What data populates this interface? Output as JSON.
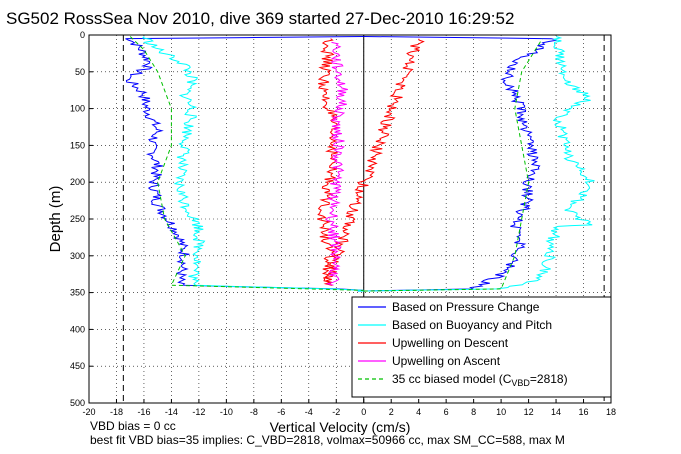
{
  "chart_data": {
    "type": "line",
    "title": "SG502 RossSea Nov 2010, dive 369 started 27-Dec-2010 16:29:52",
    "xlabel": "Vertical Velocity (cm/s)",
    "ylabel": "Depth (m)",
    "xlim": [
      -20,
      18
    ],
    "ylim": [
      0,
      500
    ],
    "y_reversed": true,
    "grid": true,
    "x_ticks": [
      -20,
      -18,
      -16,
      -14,
      -12,
      -10,
      -8,
      -6,
      -4,
      -2,
      0,
      2,
      4,
      6,
      8,
      10,
      12,
      14,
      16,
      18
    ],
    "y_ticks": [
      0,
      50,
      100,
      150,
      200,
      250,
      300,
      350,
      400,
      450,
      500
    ],
    "legend_position": "bottom-right",
    "legend": [
      {
        "label": "Based on Pressure Change",
        "color": "#0000ff",
        "style": "solid"
      },
      {
        "label": "Based on Buoyancy and Pitch",
        "color": "#00ffff",
        "style": "solid"
      },
      {
        "label": "Upwelling on Descent",
        "color": "#ff0000",
        "style": "solid"
      },
      {
        "label": "Upwelling on Ascent",
        "color": "#ff00ff",
        "style": "solid"
      },
      {
        "label": "35 cc biased model (C",
        "sub": "VBD",
        "suffix": "=2818)",
        "color": "#00c000",
        "style": "dashed"
      }
    ],
    "reference_lines_x": [
      -17.5,
      17.5
    ],
    "series": [
      {
        "key": "pressure_descent",
        "color": "#0000ff",
        "points": [
          [
            0,
            2
          ],
          [
            -17,
            5
          ],
          [
            -16.2,
            20
          ],
          [
            -15.5,
            40
          ],
          [
            -17.2,
            60
          ],
          [
            -16,
            80
          ],
          [
            -15.8,
            100
          ],
          [
            -15,
            130
          ],
          [
            -15.5,
            150
          ],
          [
            -15,
            180
          ],
          [
            -15.3,
            200
          ],
          [
            -15,
            230
          ],
          [
            -13.5,
            270
          ],
          [
            -13,
            300
          ],
          [
            -13.5,
            340
          ],
          [
            -2,
            345
          ],
          [
            0,
            347
          ]
        ]
      },
      {
        "key": "pressure_ascent",
        "color": "#0000ff",
        "points": [
          [
            0,
            348
          ],
          [
            8,
            345
          ],
          [
            10.5,
            320
          ],
          [
            11.5,
            290
          ],
          [
            11,
            260
          ],
          [
            11.8,
            230
          ],
          [
            12,
            200
          ],
          [
            12.5,
            170
          ],
          [
            12,
            140
          ],
          [
            11.5,
            110
          ],
          [
            11,
            80
          ],
          [
            10.5,
            60
          ],
          [
            11,
            40
          ],
          [
            12.5,
            20
          ],
          [
            14,
            5
          ],
          [
            0,
            2
          ]
        ]
      },
      {
        "key": "buoyancy_descent",
        "color": "#00ffff",
        "points": [
          [
            -16,
            2
          ],
          [
            -15,
            20
          ],
          [
            -13,
            40
          ],
          [
            -12.5,
            60
          ],
          [
            -13,
            80
          ],
          [
            -12.5,
            100
          ],
          [
            -13,
            150
          ],
          [
            -13.5,
            200
          ],
          [
            -13,
            230
          ],
          [
            -12,
            260
          ],
          [
            -12,
            300
          ],
          [
            -12.5,
            340
          ],
          [
            -2,
            345
          ],
          [
            0,
            347
          ]
        ]
      },
      {
        "key": "buoyancy_ascent",
        "color": "#00ffff",
        "points": [
          [
            0,
            348
          ],
          [
            10,
            345
          ],
          [
            13,
            330
          ],
          [
            13.5,
            300
          ],
          [
            14,
            260
          ],
          [
            16.5,
            258
          ],
          [
            15,
            240
          ],
          [
            16.5,
            200
          ],
          [
            15,
            170
          ],
          [
            14.5,
            140
          ],
          [
            14.2,
            110
          ],
          [
            16.5,
            85
          ],
          [
            14.5,
            60
          ],
          [
            14.5,
            40
          ],
          [
            14,
            10
          ],
          [
            14,
            2
          ]
        ]
      },
      {
        "key": "model_descent",
        "color": "#00c000",
        "dashed": true,
        "points": [
          [
            -17,
            2
          ],
          [
            -16,
            20
          ],
          [
            -15,
            50
          ],
          [
            -14,
            100
          ],
          [
            -14,
            150
          ],
          [
            -15,
            200
          ],
          [
            -14.5,
            250
          ],
          [
            -13,
            300
          ],
          [
            -14,
            340
          ],
          [
            0,
            347
          ]
        ]
      },
      {
        "key": "model_ascent",
        "color": "#00c000",
        "dashed": true,
        "points": [
          [
            0,
            348
          ],
          [
            10,
            345
          ],
          [
            11,
            300
          ],
          [
            12,
            200
          ],
          [
            11.5,
            150
          ],
          [
            11,
            100
          ],
          [
            11.5,
            50
          ],
          [
            13,
            5
          ]
        ]
      },
      {
        "key": "upwelling_descent",
        "color": "#ff0000",
        "points": [
          [
            -2.5,
            5
          ],
          [
            -2.8,
            50
          ],
          [
            -3,
            80
          ],
          [
            -2.5,
            100
          ],
          [
            -2.2,
            150
          ],
          [
            -2.5,
            200
          ],
          [
            -3,
            250
          ],
          [
            -2.5,
            300
          ],
          [
            -2.8,
            340
          ],
          [
            4,
            5
          ]
        ]
      },
      {
        "key": "upwelling_ascent",
        "color": "#ff00ff",
        "points": [
          [
            -2,
            10
          ],
          [
            -2,
            40
          ],
          [
            -1.5,
            80
          ],
          [
            -2,
            120
          ],
          [
            -1.8,
            150
          ],
          [
            -2,
            200
          ],
          [
            -2.3,
            250
          ],
          [
            -2,
            300
          ],
          [
            -2.2,
            340
          ]
        ]
      }
    ],
    "footer_lines": [
      "VBD bias = 0 cc",
      "best fit VBD bias=35 implies: C_VBD=2818, volmax=50966 cc, max SM_CC=588, max M"
    ]
  }
}
